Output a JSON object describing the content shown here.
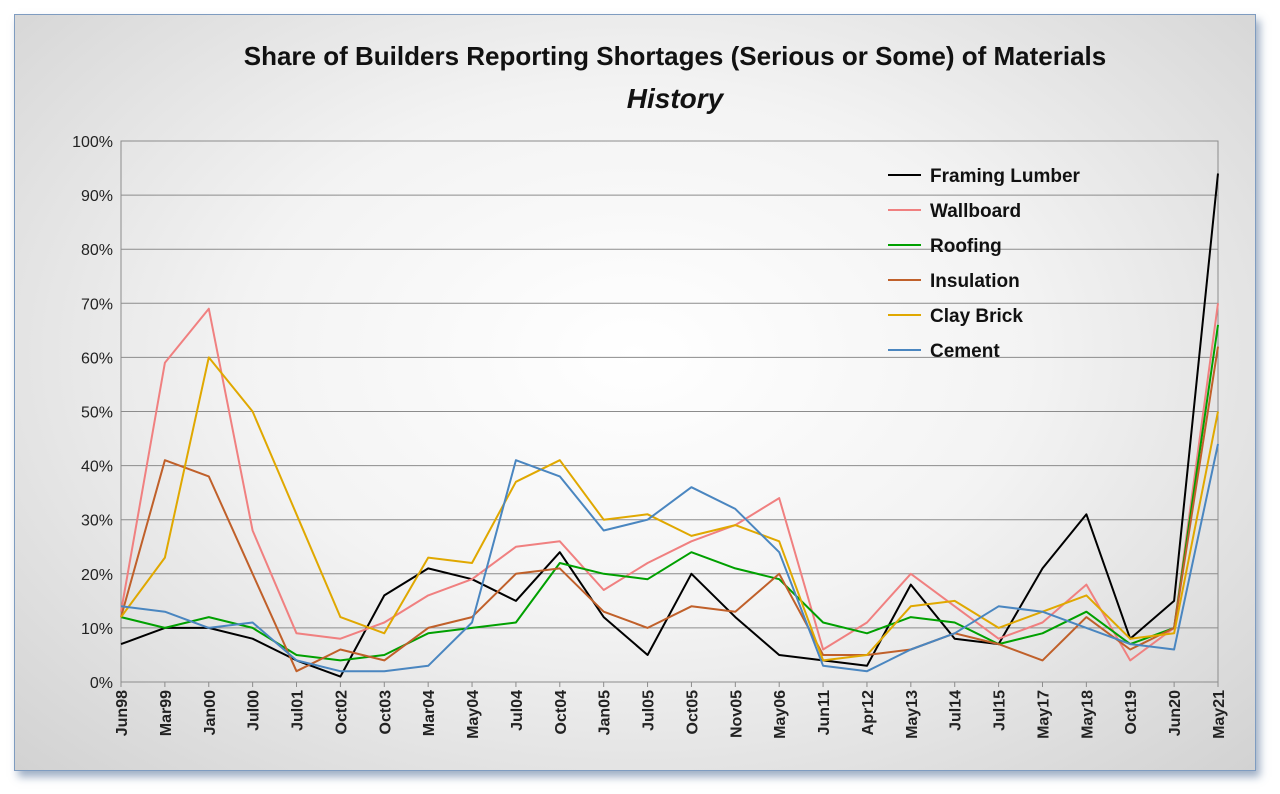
{
  "chart_data": {
    "type": "line",
    "title": "Share of Builders Reporting Shortages (Serious or Some) of Materials",
    "subtitle": "History",
    "xlabel": "",
    "ylabel": "",
    "ylim": [
      0,
      100
    ],
    "y_ticks": [
      "0%",
      "10%",
      "20%",
      "30%",
      "40%",
      "50%",
      "60%",
      "70%",
      "80%",
      "90%",
      "100%"
    ],
    "grid": "horizontal",
    "legend_position": "top-right",
    "categories": [
      "Jun98",
      "Mar99",
      "Jan00",
      "Jul00",
      "Jul01",
      "Oct02",
      "Oct03",
      "Mar04",
      "May04",
      "Jul04",
      "Oct04",
      "Jan05",
      "Jul05",
      "Oct05",
      "Nov05",
      "May06",
      "Jun11",
      "Apr12",
      "May13",
      "Jul14",
      "Jul15",
      "May17",
      "May18",
      "Oct19",
      "Jun20",
      "May21"
    ],
    "series": [
      {
        "name": "Framing Lumber",
        "color": "#000000",
        "values": [
          7,
          10,
          10,
          8,
          4,
          1,
          16,
          21,
          19,
          15,
          24,
          12,
          5,
          20,
          12,
          5,
          4,
          3,
          18,
          8,
          7,
          21,
          31,
          8,
          15,
          94
        ]
      },
      {
        "name": "Wallboard",
        "color": "#f08080",
        "values": [
          13,
          59,
          69,
          28,
          9,
          8,
          11,
          16,
          19,
          25,
          26,
          17,
          22,
          26,
          29,
          34,
          6,
          11,
          20,
          14,
          8,
          11,
          18,
          4,
          10,
          70
        ]
      },
      {
        "name": "Roofing",
        "color": "#00a000",
        "values": [
          12,
          10,
          12,
          10,
          5,
          4,
          5,
          9,
          10,
          11,
          22,
          20,
          19,
          24,
          21,
          19,
          11,
          9,
          12,
          11,
          7,
          9,
          13,
          7,
          10,
          66
        ]
      },
      {
        "name": "Insulation",
        "color": "#c0602a",
        "values": [
          12,
          41,
          38,
          20,
          2,
          6,
          4,
          10,
          12,
          20,
          21,
          13,
          10,
          14,
          13,
          20,
          5,
          5,
          6,
          9,
          7,
          4,
          12,
          6,
          10,
          62
        ]
      },
      {
        "name": "Clay Brick",
        "color": "#e0a800",
        "values": [
          12,
          23,
          60,
          50,
          31,
          12,
          9,
          23,
          22,
          37,
          41,
          30,
          31,
          27,
          29,
          26,
          4,
          5,
          14,
          15,
          10,
          13,
          16,
          8,
          9,
          50
        ]
      },
      {
        "name": "Cement",
        "color": "#4a86c0",
        "values": [
          14,
          13,
          10,
          11,
          4,
          2,
          2,
          3,
          11,
          41,
          38,
          28,
          30,
          36,
          32,
          24,
          3,
          2,
          6,
          9,
          14,
          13,
          10,
          7,
          6,
          44
        ]
      }
    ]
  }
}
